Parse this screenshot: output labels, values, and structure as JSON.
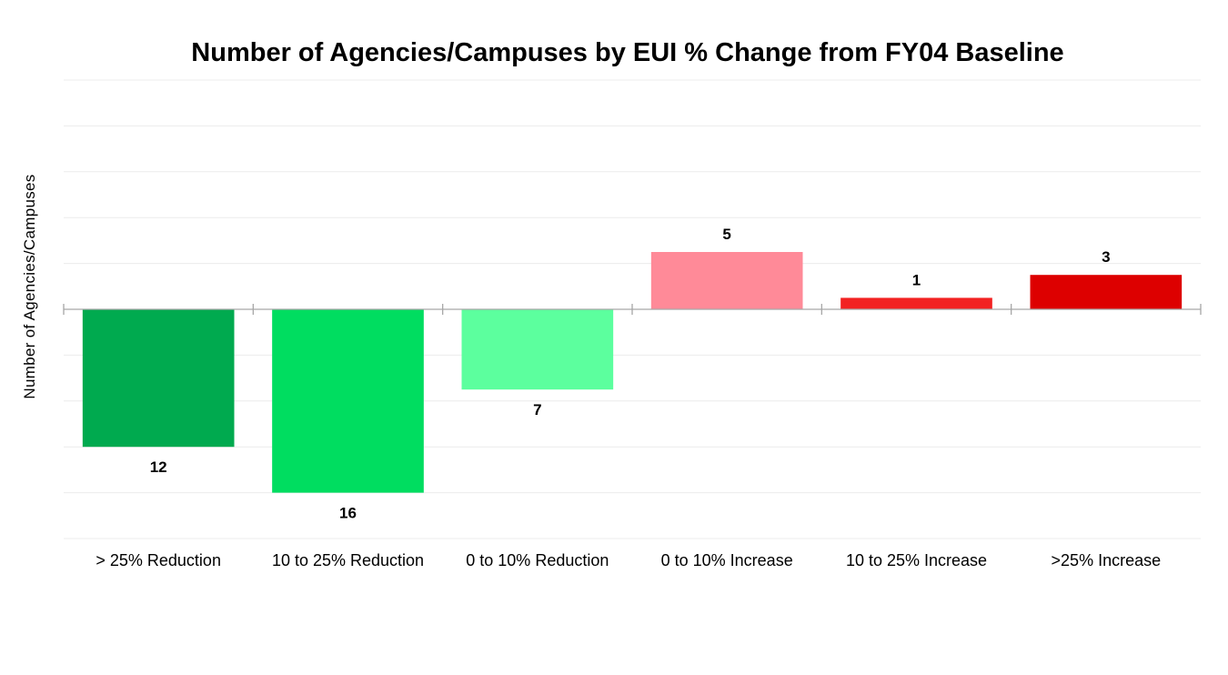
{
  "chart_data": {
    "type": "bar",
    "title": "Number of Agencies/Campuses by EUI % Change from FY04 Baseline",
    "ylabel": "Number of Agencies/Campuses",
    "xlabel": "",
    "categories": [
      "> 25% Reduction",
      "10 to 25% Reduction",
      "0 to 10% Reduction",
      "0 to 10% Increase",
      "10 to 25% Increase",
      ">25% Increase"
    ],
    "values": [
      -12,
      -16,
      -7,
      5,
      1,
      3
    ],
    "data_labels": [
      "12",
      "16",
      "7",
      "5",
      "1",
      "3"
    ],
    "colors": [
      "#00aa4f",
      "#00dd60",
      "#5cff9e",
      "#ff8a98",
      "#f22222",
      "#dd0000"
    ],
    "ylim": [
      -20,
      20
    ],
    "grid": true,
    "gridline_color": "#ececec",
    "axis_color": "#a6a6a6"
  }
}
